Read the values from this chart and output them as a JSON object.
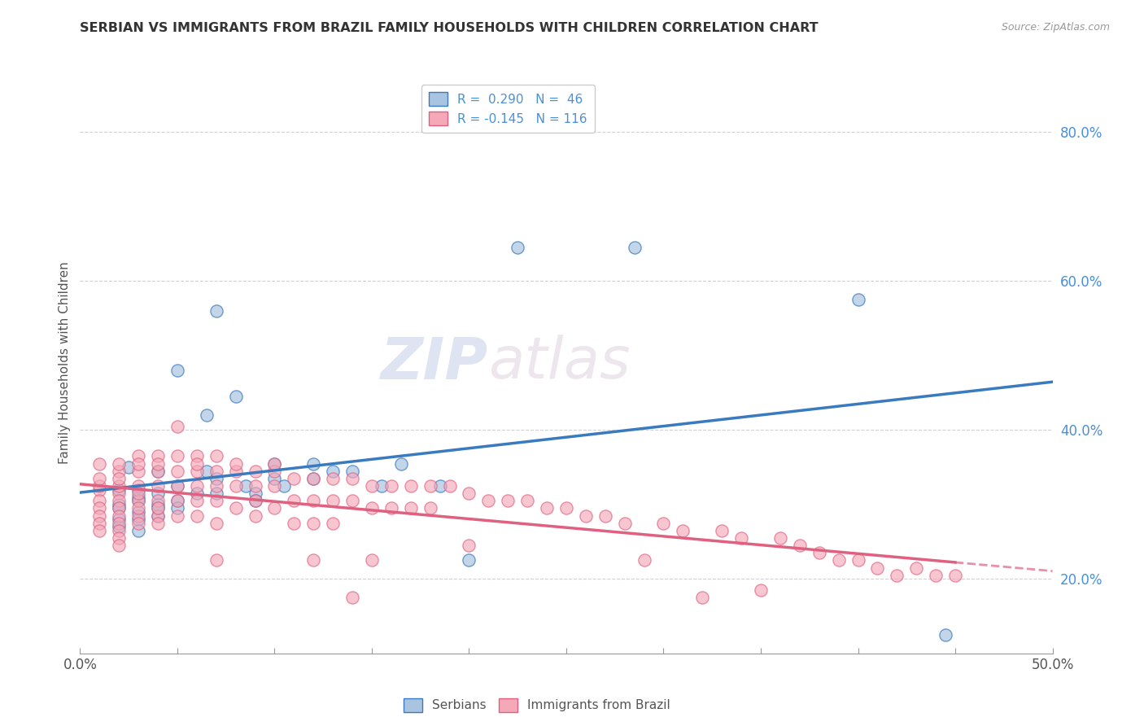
{
  "title": "SERBIAN VS IMMIGRANTS FROM BRAZIL FAMILY HOUSEHOLDS WITH CHILDREN CORRELATION CHART",
  "source": "Source: ZipAtlas.com",
  "ylabel": "Family Households with Children",
  "xlim": [
    0.0,
    0.5
  ],
  "ylim": [
    0.1,
    0.88
  ],
  "xticks": [
    0.0,
    0.05,
    0.1,
    0.15,
    0.2,
    0.25,
    0.3,
    0.35,
    0.4,
    0.45,
    0.5
  ],
  "xticklabels": [
    "0.0%",
    "",
    "",
    "",
    "",
    "",
    "",
    "",
    "",
    "",
    "50.0%"
  ],
  "ytick_positions": [
    0.2,
    0.4,
    0.6,
    0.8
  ],
  "ytick_labels": [
    "20.0%",
    "40.0%",
    "60.0%",
    "80.0%"
  ],
  "color_serbian": "#a8c4e0",
  "color_brazil": "#f4a8b8",
  "color_line_serbian": "#3a7abf",
  "color_line_brazil": "#e06080",
  "watermark_zip": "ZIP",
  "watermark_atlas": "atlas",
  "serbian_points": [
    [
      0.02,
      0.3
    ],
    [
      0.02,
      0.28
    ],
    [
      0.02,
      0.32
    ],
    [
      0.025,
      0.35
    ],
    [
      0.02,
      0.27
    ],
    [
      0.02,
      0.295
    ],
    [
      0.03,
      0.31
    ],
    [
      0.03,
      0.29
    ],
    [
      0.03,
      0.28
    ],
    [
      0.03,
      0.265
    ],
    [
      0.03,
      0.305
    ],
    [
      0.03,
      0.32
    ],
    [
      0.04,
      0.345
    ],
    [
      0.04,
      0.315
    ],
    [
      0.04,
      0.285
    ],
    [
      0.04,
      0.3
    ],
    [
      0.04,
      0.295
    ],
    [
      0.05,
      0.325
    ],
    [
      0.05,
      0.48
    ],
    [
      0.05,
      0.305
    ],
    [
      0.05,
      0.295
    ],
    [
      0.06,
      0.315
    ],
    [
      0.065,
      0.42
    ],
    [
      0.065,
      0.345
    ],
    [
      0.07,
      0.56
    ],
    [
      0.07,
      0.315
    ],
    [
      0.07,
      0.335
    ],
    [
      0.08,
      0.445
    ],
    [
      0.085,
      0.325
    ],
    [
      0.09,
      0.315
    ],
    [
      0.09,
      0.305
    ],
    [
      0.1,
      0.335
    ],
    [
      0.1,
      0.355
    ],
    [
      0.105,
      0.325
    ],
    [
      0.12,
      0.355
    ],
    [
      0.12,
      0.335
    ],
    [
      0.13,
      0.345
    ],
    [
      0.14,
      0.345
    ],
    [
      0.155,
      0.325
    ],
    [
      0.165,
      0.355
    ],
    [
      0.185,
      0.325
    ],
    [
      0.2,
      0.225
    ],
    [
      0.225,
      0.645
    ],
    [
      0.285,
      0.645
    ],
    [
      0.4,
      0.575
    ],
    [
      0.445,
      0.125
    ]
  ],
  "brazil_points": [
    [
      0.01,
      0.32
    ],
    [
      0.01,
      0.305
    ],
    [
      0.01,
      0.295
    ],
    [
      0.01,
      0.285
    ],
    [
      0.01,
      0.275
    ],
    [
      0.01,
      0.325
    ],
    [
      0.01,
      0.355
    ],
    [
      0.01,
      0.265
    ],
    [
      0.01,
      0.335
    ],
    [
      0.02,
      0.345
    ],
    [
      0.02,
      0.315
    ],
    [
      0.02,
      0.305
    ],
    [
      0.02,
      0.295
    ],
    [
      0.02,
      0.285
    ],
    [
      0.02,
      0.275
    ],
    [
      0.02,
      0.325
    ],
    [
      0.02,
      0.355
    ],
    [
      0.02,
      0.265
    ],
    [
      0.02,
      0.255
    ],
    [
      0.02,
      0.245
    ],
    [
      0.02,
      0.335
    ],
    [
      0.03,
      0.365
    ],
    [
      0.03,
      0.345
    ],
    [
      0.03,
      0.325
    ],
    [
      0.03,
      0.305
    ],
    [
      0.03,
      0.285
    ],
    [
      0.03,
      0.275
    ],
    [
      0.03,
      0.355
    ],
    [
      0.03,
      0.295
    ],
    [
      0.03,
      0.315
    ],
    [
      0.04,
      0.365
    ],
    [
      0.04,
      0.345
    ],
    [
      0.04,
      0.325
    ],
    [
      0.04,
      0.305
    ],
    [
      0.04,
      0.285
    ],
    [
      0.04,
      0.275
    ],
    [
      0.04,
      0.295
    ],
    [
      0.04,
      0.355
    ],
    [
      0.05,
      0.365
    ],
    [
      0.05,
      0.345
    ],
    [
      0.05,
      0.325
    ],
    [
      0.05,
      0.305
    ],
    [
      0.05,
      0.285
    ],
    [
      0.05,
      0.405
    ],
    [
      0.06,
      0.365
    ],
    [
      0.06,
      0.345
    ],
    [
      0.06,
      0.325
    ],
    [
      0.06,
      0.305
    ],
    [
      0.06,
      0.285
    ],
    [
      0.06,
      0.355
    ],
    [
      0.07,
      0.365
    ],
    [
      0.07,
      0.345
    ],
    [
      0.07,
      0.325
    ],
    [
      0.07,
      0.305
    ],
    [
      0.07,
      0.225
    ],
    [
      0.07,
      0.275
    ],
    [
      0.08,
      0.345
    ],
    [
      0.08,
      0.325
    ],
    [
      0.08,
      0.295
    ],
    [
      0.08,
      0.355
    ],
    [
      0.09,
      0.345
    ],
    [
      0.09,
      0.325
    ],
    [
      0.09,
      0.305
    ],
    [
      0.09,
      0.285
    ],
    [
      0.1,
      0.345
    ],
    [
      0.1,
      0.325
    ],
    [
      0.1,
      0.295
    ],
    [
      0.1,
      0.355
    ],
    [
      0.11,
      0.335
    ],
    [
      0.11,
      0.305
    ],
    [
      0.11,
      0.275
    ],
    [
      0.12,
      0.335
    ],
    [
      0.12,
      0.305
    ],
    [
      0.12,
      0.275
    ],
    [
      0.12,
      0.225
    ],
    [
      0.13,
      0.335
    ],
    [
      0.13,
      0.305
    ],
    [
      0.13,
      0.275
    ],
    [
      0.14,
      0.335
    ],
    [
      0.14,
      0.305
    ],
    [
      0.14,
      0.175
    ],
    [
      0.15,
      0.325
    ],
    [
      0.15,
      0.295
    ],
    [
      0.15,
      0.225
    ],
    [
      0.16,
      0.325
    ],
    [
      0.16,
      0.295
    ],
    [
      0.17,
      0.325
    ],
    [
      0.17,
      0.295
    ],
    [
      0.18,
      0.325
    ],
    [
      0.18,
      0.295
    ],
    [
      0.19,
      0.325
    ],
    [
      0.2,
      0.245
    ],
    [
      0.2,
      0.315
    ],
    [
      0.21,
      0.305
    ],
    [
      0.22,
      0.305
    ],
    [
      0.23,
      0.305
    ],
    [
      0.24,
      0.295
    ],
    [
      0.25,
      0.295
    ],
    [
      0.26,
      0.285
    ],
    [
      0.27,
      0.285
    ],
    [
      0.28,
      0.275
    ],
    [
      0.29,
      0.225
    ],
    [
      0.3,
      0.275
    ],
    [
      0.31,
      0.265
    ],
    [
      0.32,
      0.175
    ],
    [
      0.33,
      0.265
    ],
    [
      0.34,
      0.255
    ],
    [
      0.35,
      0.185
    ],
    [
      0.36,
      0.255
    ],
    [
      0.37,
      0.245
    ],
    [
      0.38,
      0.235
    ],
    [
      0.39,
      0.225
    ],
    [
      0.4,
      0.225
    ],
    [
      0.41,
      0.215
    ],
    [
      0.42,
      0.205
    ],
    [
      0.43,
      0.215
    ],
    [
      0.44,
      0.205
    ],
    [
      0.45,
      0.205
    ]
  ]
}
